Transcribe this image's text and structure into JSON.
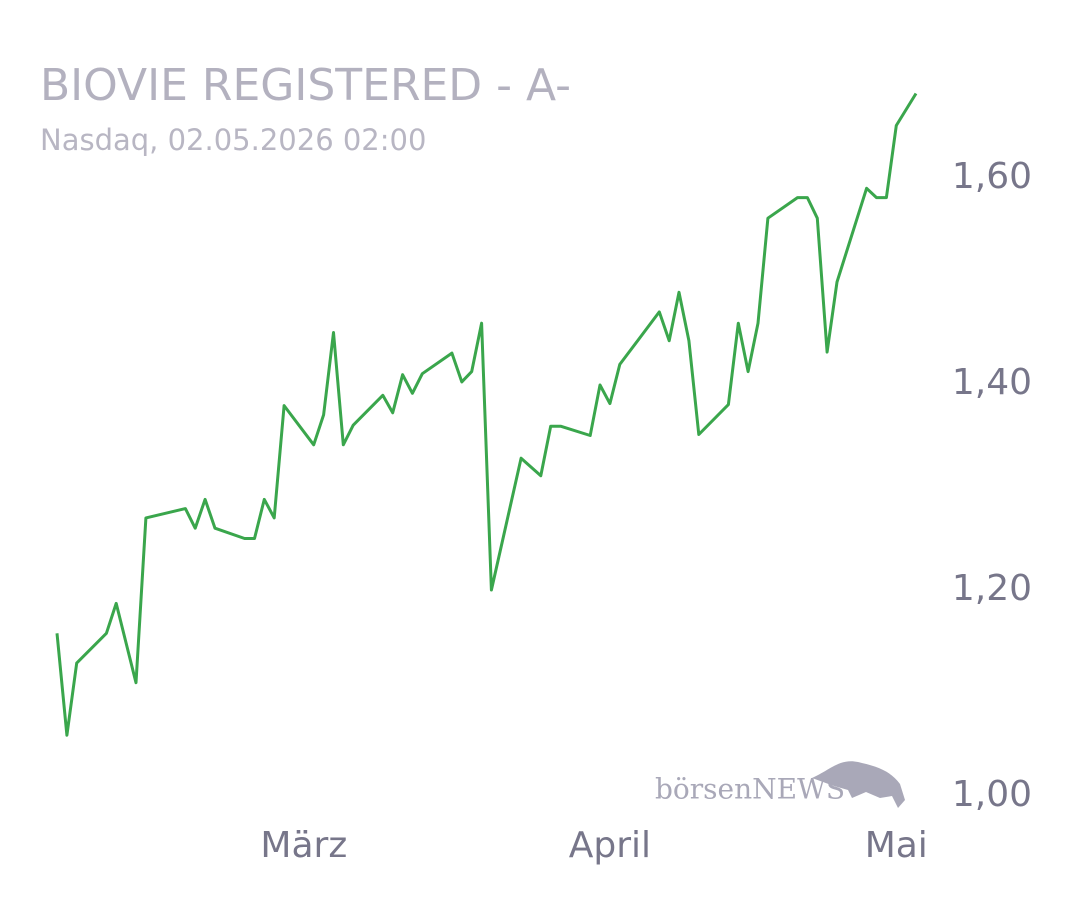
{
  "chart_data": {
    "type": "line",
    "title": "BIOVIE REGISTERED - A-",
    "subtitle": "Nasdaq, 02.05.2026 02:00",
    "watermark": "börsenNEWS",
    "color": "#3aa64c",
    "x": [
      0,
      1,
      2,
      5,
      6,
      8,
      9,
      13,
      14,
      15,
      16,
      19,
      20,
      21,
      22,
      23,
      26,
      27,
      28,
      29,
      30,
      33,
      34,
      35,
      36,
      37,
      40,
      41,
      42,
      43,
      44,
      47,
      49,
      50,
      51,
      54,
      55,
      56,
      57,
      61,
      62,
      63,
      64,
      65,
      68,
      69,
      70,
      71,
      72,
      75,
      76,
      77,
      78,
      79,
      82,
      83,
      84,
      85,
      87
    ],
    "values": [
      1.158,
      1.059,
      1.129,
      1.158,
      1.187,
      1.11,
      1.27,
      1.279,
      1.26,
      1.288,
      1.26,
      1.25,
      1.25,
      1.288,
      1.27,
      1.379,
      1.341,
      1.37,
      1.45,
      1.341,
      1.36,
      1.389,
      1.372,
      1.409,
      1.391,
      1.41,
      1.43,
      1.402,
      1.412,
      1.459,
      1.2,
      1.328,
      1.311,
      1.359,
      1.359,
      1.35,
      1.399,
      1.381,
      1.419,
      1.47,
      1.442,
      1.489,
      1.442,
      1.351,
      1.38,
      1.459,
      1.412,
      1.459,
      1.561,
      1.581,
      1.581,
      1.561,
      1.431,
      1.499,
      1.59,
      1.581,
      1.581,
      1.651,
      1.682
    ],
    "xlim": [
      0,
      87
    ],
    "xticks": [
      {
        "value": 25,
        "label": "März"
      },
      {
        "value": 56,
        "label": "April"
      },
      {
        "value": 85,
        "label": "Mai"
      }
    ],
    "ylim": [
      1.0,
      1.7
    ],
    "yticks": [
      {
        "value": 1.0,
        "label": "1,00"
      },
      {
        "value": 1.2,
        "label": "1,20"
      },
      {
        "value": 1.4,
        "label": "1,40"
      },
      {
        "value": 1.6,
        "label": "1,60"
      }
    ]
  }
}
